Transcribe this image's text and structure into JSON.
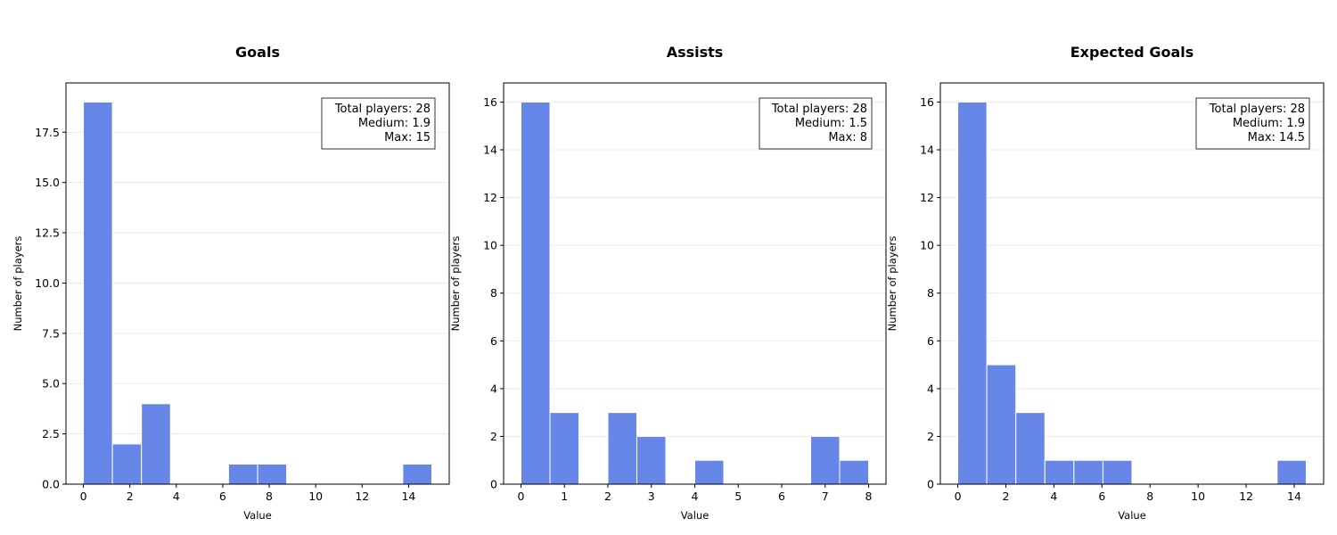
{
  "chart_data": [
    {
      "type": "bar",
      "title": "Goals",
      "xlabel": "Value",
      "ylabel": "Number of players",
      "xlim": [
        -0.75,
        15.75
      ],
      "ylim": [
        0,
        19.95
      ],
      "xticks": [
        0,
        2,
        4,
        6,
        8,
        10,
        12,
        14
      ],
      "xtick_labels": [
        "0",
        "2",
        "4",
        "6",
        "8",
        "10",
        "12",
        "14"
      ],
      "yticks": [
        0,
        2.5,
        5,
        7.5,
        10,
        12.5,
        15,
        17.5
      ],
      "ytick_labels": [
        "0.0",
        "2.5",
        "5.0",
        "7.5",
        "10.0",
        "12.5",
        "15.0",
        "17.5"
      ],
      "grid": "y",
      "bins": [
        {
          "x0": 0,
          "x1": 1.25,
          "count": 19
        },
        {
          "x0": 1.25,
          "x1": 2.5,
          "count": 2
        },
        {
          "x0": 2.5,
          "x1": 3.75,
          "count": 4
        },
        {
          "x0": 3.75,
          "x1": 5,
          "count": 0
        },
        {
          "x0": 5,
          "x1": 6.25,
          "count": 0
        },
        {
          "x0": 6.25,
          "x1": 7.5,
          "count": 1
        },
        {
          "x0": 7.5,
          "x1": 8.75,
          "count": 1
        },
        {
          "x0": 8.75,
          "x1": 10,
          "count": 0
        },
        {
          "x0": 10,
          "x1": 11.25,
          "count": 0
        },
        {
          "x0": 11.25,
          "x1": 12.5,
          "count": 0
        },
        {
          "x0": 12.5,
          "x1": 13.75,
          "count": 0
        },
        {
          "x0": 13.75,
          "x1": 15,
          "count": 1
        }
      ],
      "stats_box": [
        "Total players: 28",
        "Medium: 1.9",
        "Max: 15"
      ],
      "stats_position": "top-right",
      "bar_color": "#6687e8"
    },
    {
      "type": "bar",
      "title": "Assists",
      "xlabel": "Value",
      "ylabel": "Number of players",
      "xlim": [
        -0.4,
        8.4
      ],
      "ylim": [
        0,
        16.8
      ],
      "xticks": [
        0,
        1,
        2,
        3,
        4,
        5,
        6,
        7,
        8
      ],
      "xtick_labels": [
        "0",
        "1",
        "2",
        "3",
        "4",
        "5",
        "6",
        "7",
        "8"
      ],
      "yticks": [
        0,
        2,
        4,
        6,
        8,
        10,
        12,
        14,
        16
      ],
      "ytick_labels": [
        "0",
        "2",
        "4",
        "6",
        "8",
        "10",
        "12",
        "14",
        "16"
      ],
      "grid": "y",
      "bins": [
        {
          "x0": 0,
          "x1": 0.6667,
          "count": 16
        },
        {
          "x0": 0.6667,
          "x1": 1.3333,
          "count": 3
        },
        {
          "x0": 1.3333,
          "x1": 2,
          "count": 0
        },
        {
          "x0": 2,
          "x1": 2.6667,
          "count": 3
        },
        {
          "x0": 2.6667,
          "x1": 3.3333,
          "count": 2
        },
        {
          "x0": 3.3333,
          "x1": 4,
          "count": 0
        },
        {
          "x0": 4,
          "x1": 4.6667,
          "count": 1
        },
        {
          "x0": 4.6667,
          "x1": 5.3333,
          "count": 0
        },
        {
          "x0": 5.3333,
          "x1": 6,
          "count": 0
        },
        {
          "x0": 6,
          "x1": 6.6667,
          "count": 0
        },
        {
          "x0": 6.6667,
          "x1": 7.3333,
          "count": 2
        },
        {
          "x0": 7.3333,
          "x1": 8,
          "count": 1
        }
      ],
      "stats_box": [
        "Total players: 28",
        "Medium: 1.5",
        "Max: 8"
      ],
      "stats_position": "top-right",
      "bar_color": "#6687e8"
    },
    {
      "type": "bar",
      "title": "Expected Goals",
      "xlabel": "Value",
      "ylabel": "Number of players",
      "xlim": [
        -0.725,
        15.225
      ],
      "ylim": [
        0,
        16.8
      ],
      "xticks": [
        0,
        2,
        4,
        6,
        8,
        10,
        12,
        14
      ],
      "xtick_labels": [
        "0",
        "2",
        "4",
        "6",
        "8",
        "10",
        "12",
        "14"
      ],
      "yticks": [
        0,
        2,
        4,
        6,
        8,
        10,
        12,
        14,
        16
      ],
      "ytick_labels": [
        "0",
        "2",
        "4",
        "6",
        "8",
        "10",
        "12",
        "14",
        "16"
      ],
      "grid": "y",
      "bins": [
        {
          "x0": 0,
          "x1": 1.2083,
          "count": 16
        },
        {
          "x0": 1.2083,
          "x1": 2.4167,
          "count": 5
        },
        {
          "x0": 2.4167,
          "x1": 3.625,
          "count": 3
        },
        {
          "x0": 3.625,
          "x1": 4.8333,
          "count": 1
        },
        {
          "x0": 4.8333,
          "x1": 6.0417,
          "count": 1
        },
        {
          "x0": 6.0417,
          "x1": 7.25,
          "count": 1
        },
        {
          "x0": 7.25,
          "x1": 8.4583,
          "count": 0
        },
        {
          "x0": 8.4583,
          "x1": 9.6667,
          "count": 0
        },
        {
          "x0": 9.6667,
          "x1": 10.875,
          "count": 0
        },
        {
          "x0": 10.875,
          "x1": 12.0833,
          "count": 0
        },
        {
          "x0": 12.0833,
          "x1": 13.2917,
          "count": 0
        },
        {
          "x0": 13.2917,
          "x1": 14.5,
          "count": 1
        }
      ],
      "stats_box": [
        "Total players: 28",
        "Medium: 1.9",
        "Max: 14.5"
      ],
      "stats_position": "top-right",
      "bar_color": "#6687e8"
    }
  ]
}
